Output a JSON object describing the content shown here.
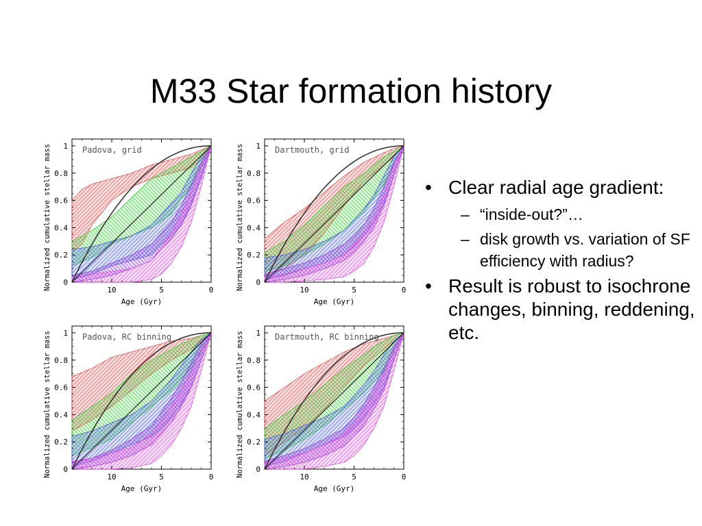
{
  "slide": {
    "title": "M33 Star formation history",
    "bullets": [
      {
        "text": "Clear radial age gradient:",
        "sub": [
          "“inside-out?”…",
          "disk growth vs. variation of SF efficiency with radius?"
        ]
      },
      {
        "text": "Result is robust to isochrone changes, binning, reddening, etc.",
        "sub": []
      }
    ]
  },
  "chart_data": [
    {
      "type": "area",
      "title": "Padova, grid",
      "xlabel": "Age (Gyr)",
      "ylabel": "Normalized cumulative stellar mass",
      "xlim": [
        14,
        0
      ],
      "ylim": [
        0,
        1.05
      ],
      "xticks": [
        "10",
        "5",
        "0"
      ],
      "yticks": [
        "0",
        "0.2",
        "0.4",
        "0.6",
        "0.8",
        "1"
      ],
      "series": [
        {
          "color": "#e85050",
          "x": [
            14,
            13,
            12,
            10,
            8,
            6,
            4,
            2,
            1,
            0
          ],
          "lower": [
            0.22,
            0.28,
            0.42,
            0.6,
            0.7,
            0.76,
            0.8,
            0.84,
            0.9,
            1
          ],
          "upper": [
            0.6,
            0.68,
            0.72,
            0.76,
            0.8,
            0.86,
            0.9,
            0.94,
            0.97,
            1
          ]
        },
        {
          "color": "#3ecc3e",
          "x": [
            14,
            12,
            10,
            8,
            6,
            4,
            3,
            2,
            1,
            0
          ],
          "lower": [
            0.12,
            0.18,
            0.28,
            0.34,
            0.4,
            0.5,
            0.62,
            0.7,
            0.84,
            1
          ],
          "upper": [
            0.3,
            0.38,
            0.48,
            0.62,
            0.76,
            0.84,
            0.88,
            0.92,
            0.96,
            1
          ]
        },
        {
          "color": "#4a5ee0",
          "x": [
            14,
            12,
            10,
            8,
            6,
            5,
            4,
            3,
            2,
            1,
            0
          ],
          "lower": [
            0.02,
            0.06,
            0.12,
            0.16,
            0.2,
            0.28,
            0.34,
            0.42,
            0.56,
            0.76,
            1
          ],
          "upper": [
            0.24,
            0.26,
            0.3,
            0.34,
            0.42,
            0.5,
            0.58,
            0.66,
            0.8,
            0.92,
            1
          ]
        },
        {
          "color": "#8a3ee0",
          "x": [
            14,
            12,
            10,
            8,
            6,
            5,
            4,
            3,
            2,
            1,
            0
          ],
          "lower": [
            0,
            0.02,
            0.05,
            0.1,
            0.16,
            0.24,
            0.32,
            0.42,
            0.58,
            0.78,
            1
          ],
          "upper": [
            0.05,
            0.08,
            0.14,
            0.2,
            0.28,
            0.36,
            0.44,
            0.56,
            0.72,
            0.88,
            1
          ]
        },
        {
          "color": "#e050e0",
          "x": [
            14,
            12,
            10,
            8,
            6,
            5,
            4,
            3,
            2,
            1,
            0
          ],
          "lower": [
            0,
            0,
            0,
            0,
            0.02,
            0.06,
            0.14,
            0.26,
            0.44,
            0.7,
            1
          ],
          "upper": [
            0.04,
            0.06,
            0.08,
            0.1,
            0.16,
            0.26,
            0.36,
            0.5,
            0.66,
            0.86,
            1
          ]
        }
      ]
    },
    {
      "type": "area",
      "title": "Dartmouth, grid",
      "xlabel": "Age (Gyr)",
      "ylabel": "Normalized cumulative stellar mass",
      "xlim": [
        14,
        0
      ],
      "ylim": [
        0,
        1.05
      ],
      "xticks": [
        "10",
        "5",
        "0"
      ],
      "yticks": [
        "0",
        "0.2",
        "0.4",
        "0.6",
        "0.8",
        "1"
      ],
      "series": [
        {
          "color": "#e85050",
          "x": [
            14,
            12,
            10,
            8,
            6,
            4,
            2,
            1,
            0
          ],
          "lower": [
            0.04,
            0.1,
            0.2,
            0.36,
            0.56,
            0.74,
            0.86,
            0.92,
            1
          ],
          "upper": [
            0.32,
            0.44,
            0.54,
            0.66,
            0.78,
            0.88,
            0.95,
            0.98,
            1
          ]
        },
        {
          "color": "#3ecc3e",
          "x": [
            14,
            12,
            10,
            8,
            6,
            4,
            3,
            2,
            1,
            0
          ],
          "lower": [
            0.08,
            0.12,
            0.2,
            0.28,
            0.38,
            0.52,
            0.62,
            0.72,
            0.86,
            1
          ],
          "upper": [
            0.22,
            0.3,
            0.42,
            0.56,
            0.7,
            0.8,
            0.86,
            0.92,
            0.96,
            1
          ]
        },
        {
          "color": "#4a5ee0",
          "x": [
            14,
            12,
            10,
            8,
            6,
            5,
            4,
            3,
            2,
            1,
            0
          ],
          "lower": [
            0.02,
            0.05,
            0.1,
            0.14,
            0.2,
            0.26,
            0.34,
            0.44,
            0.58,
            0.78,
            1
          ],
          "upper": [
            0.18,
            0.2,
            0.24,
            0.3,
            0.38,
            0.46,
            0.54,
            0.64,
            0.78,
            0.92,
            1
          ]
        },
        {
          "color": "#8a3ee0",
          "x": [
            14,
            12,
            10,
            8,
            6,
            5,
            4,
            3,
            2,
            1,
            0
          ],
          "lower": [
            0,
            0.02,
            0.05,
            0.1,
            0.16,
            0.22,
            0.3,
            0.4,
            0.56,
            0.78,
            1
          ],
          "upper": [
            0.06,
            0.1,
            0.14,
            0.2,
            0.28,
            0.34,
            0.42,
            0.54,
            0.7,
            0.88,
            1
          ]
        },
        {
          "color": "#e050e0",
          "x": [
            14,
            12,
            10,
            8,
            6,
            5,
            4,
            3,
            2,
            1,
            0
          ],
          "lower": [
            0,
            0,
            0.01,
            0.02,
            0.04,
            0.08,
            0.14,
            0.26,
            0.44,
            0.7,
            1
          ],
          "upper": [
            0.04,
            0.06,
            0.1,
            0.14,
            0.2,
            0.28,
            0.36,
            0.48,
            0.64,
            0.86,
            1
          ]
        }
      ]
    },
    {
      "type": "area",
      "title": "Padova, RC binning",
      "xlabel": "Age (Gyr)",
      "ylabel": "Normalized cumulative stellar mass",
      "xlim": [
        14,
        0
      ],
      "ylim": [
        0,
        1.05
      ],
      "xticks": [
        "10",
        "5",
        "0"
      ],
      "yticks": [
        "0",
        "0.2",
        "0.4",
        "0.6",
        "0.8",
        "1"
      ],
      "series": [
        {
          "color": "#e85050",
          "x": [
            14,
            12,
            10,
            8,
            6,
            4,
            2,
            1,
            0
          ],
          "lower": [
            0.28,
            0.36,
            0.46,
            0.58,
            0.7,
            0.8,
            0.88,
            0.94,
            1
          ],
          "upper": [
            0.68,
            0.74,
            0.82,
            0.86,
            0.9,
            0.94,
            0.96,
            0.98,
            1
          ]
        },
        {
          "color": "#3ecc3e",
          "x": [
            14,
            12,
            10,
            8,
            6,
            4,
            3,
            2,
            1,
            0
          ],
          "lower": [
            0.1,
            0.16,
            0.22,
            0.34,
            0.46,
            0.58,
            0.66,
            0.74,
            0.86,
            1
          ],
          "upper": [
            0.36,
            0.46,
            0.56,
            0.7,
            0.8,
            0.88,
            0.92,
            0.95,
            0.98,
            1
          ]
        },
        {
          "color": "#4a5ee0",
          "x": [
            14,
            12,
            10,
            8,
            6,
            5,
            4,
            3,
            2,
            1,
            0
          ],
          "lower": [
            0.02,
            0.06,
            0.12,
            0.18,
            0.24,
            0.3,
            0.38,
            0.48,
            0.6,
            0.8,
            1
          ],
          "upper": [
            0.24,
            0.28,
            0.34,
            0.4,
            0.5,
            0.58,
            0.66,
            0.76,
            0.86,
            0.95,
            1
          ]
        },
        {
          "color": "#8a3ee0",
          "x": [
            14,
            12,
            10,
            8,
            6,
            5,
            4,
            3,
            2,
            1,
            0
          ],
          "lower": [
            0,
            0.02,
            0.05,
            0.1,
            0.18,
            0.26,
            0.34,
            0.46,
            0.6,
            0.8,
            1
          ],
          "upper": [
            0.05,
            0.08,
            0.14,
            0.22,
            0.32,
            0.42,
            0.52,
            0.64,
            0.78,
            0.92,
            1
          ]
        },
        {
          "color": "#e050e0",
          "x": [
            14,
            12,
            10,
            8,
            6,
            5,
            4,
            3,
            2,
            1,
            0
          ],
          "lower": [
            0,
            0,
            0,
            0.01,
            0.04,
            0.1,
            0.18,
            0.3,
            0.46,
            0.72,
            1
          ],
          "upper": [
            0.06,
            0.08,
            0.12,
            0.16,
            0.26,
            0.36,
            0.46,
            0.58,
            0.72,
            0.88,
            1
          ]
        }
      ]
    },
    {
      "type": "area",
      "title": "Dartmouth, RC binning",
      "xlabel": "Age (Gyr)",
      "ylabel": "Normalized cumulative stellar mass",
      "xlim": [
        14,
        0
      ],
      "ylim": [
        0,
        1.05
      ],
      "xticks": [
        "10",
        "5",
        "0"
      ],
      "yticks": [
        "0",
        "0.2",
        "0.4",
        "0.6",
        "0.8",
        "1"
      ],
      "series": [
        {
          "color": "#e85050",
          "x": [
            14,
            12,
            10,
            8,
            6,
            4,
            2,
            1,
            0
          ],
          "lower": [
            0.1,
            0.2,
            0.3,
            0.44,
            0.6,
            0.76,
            0.88,
            0.94,
            1
          ],
          "upper": [
            0.5,
            0.6,
            0.7,
            0.78,
            0.86,
            0.92,
            0.96,
            0.98,
            1
          ]
        },
        {
          "color": "#3ecc3e",
          "x": [
            14,
            12,
            10,
            8,
            6,
            4,
            3,
            2,
            1,
            0
          ],
          "lower": [
            0.08,
            0.14,
            0.22,
            0.32,
            0.44,
            0.56,
            0.64,
            0.72,
            0.86,
            1
          ],
          "upper": [
            0.3,
            0.4,
            0.5,
            0.62,
            0.74,
            0.84,
            0.9,
            0.94,
            0.98,
            1
          ]
        },
        {
          "color": "#4a5ee0",
          "x": [
            14,
            12,
            10,
            8,
            6,
            5,
            4,
            3,
            2,
            1,
            0
          ],
          "lower": [
            0.02,
            0.06,
            0.12,
            0.18,
            0.24,
            0.3,
            0.38,
            0.48,
            0.6,
            0.8,
            1
          ],
          "upper": [
            0.22,
            0.26,
            0.32,
            0.38,
            0.46,
            0.54,
            0.62,
            0.72,
            0.84,
            0.94,
            1
          ]
        },
        {
          "color": "#8a3ee0",
          "x": [
            14,
            12,
            10,
            8,
            6,
            5,
            4,
            3,
            2,
            1,
            0
          ],
          "lower": [
            0,
            0.02,
            0.05,
            0.1,
            0.17,
            0.24,
            0.32,
            0.44,
            0.58,
            0.8,
            1
          ],
          "upper": [
            0.06,
            0.1,
            0.15,
            0.22,
            0.3,
            0.38,
            0.48,
            0.6,
            0.74,
            0.9,
            1
          ]
        },
        {
          "color": "#e050e0",
          "x": [
            14,
            12,
            10,
            8,
            6,
            5,
            4,
            3,
            2,
            1,
            0
          ],
          "lower": [
            0,
            0,
            0,
            0.02,
            0.05,
            0.1,
            0.18,
            0.3,
            0.46,
            0.72,
            1
          ],
          "upper": [
            0.05,
            0.08,
            0.12,
            0.18,
            0.26,
            0.34,
            0.44,
            0.56,
            0.7,
            0.88,
            1
          ]
        }
      ]
    }
  ]
}
